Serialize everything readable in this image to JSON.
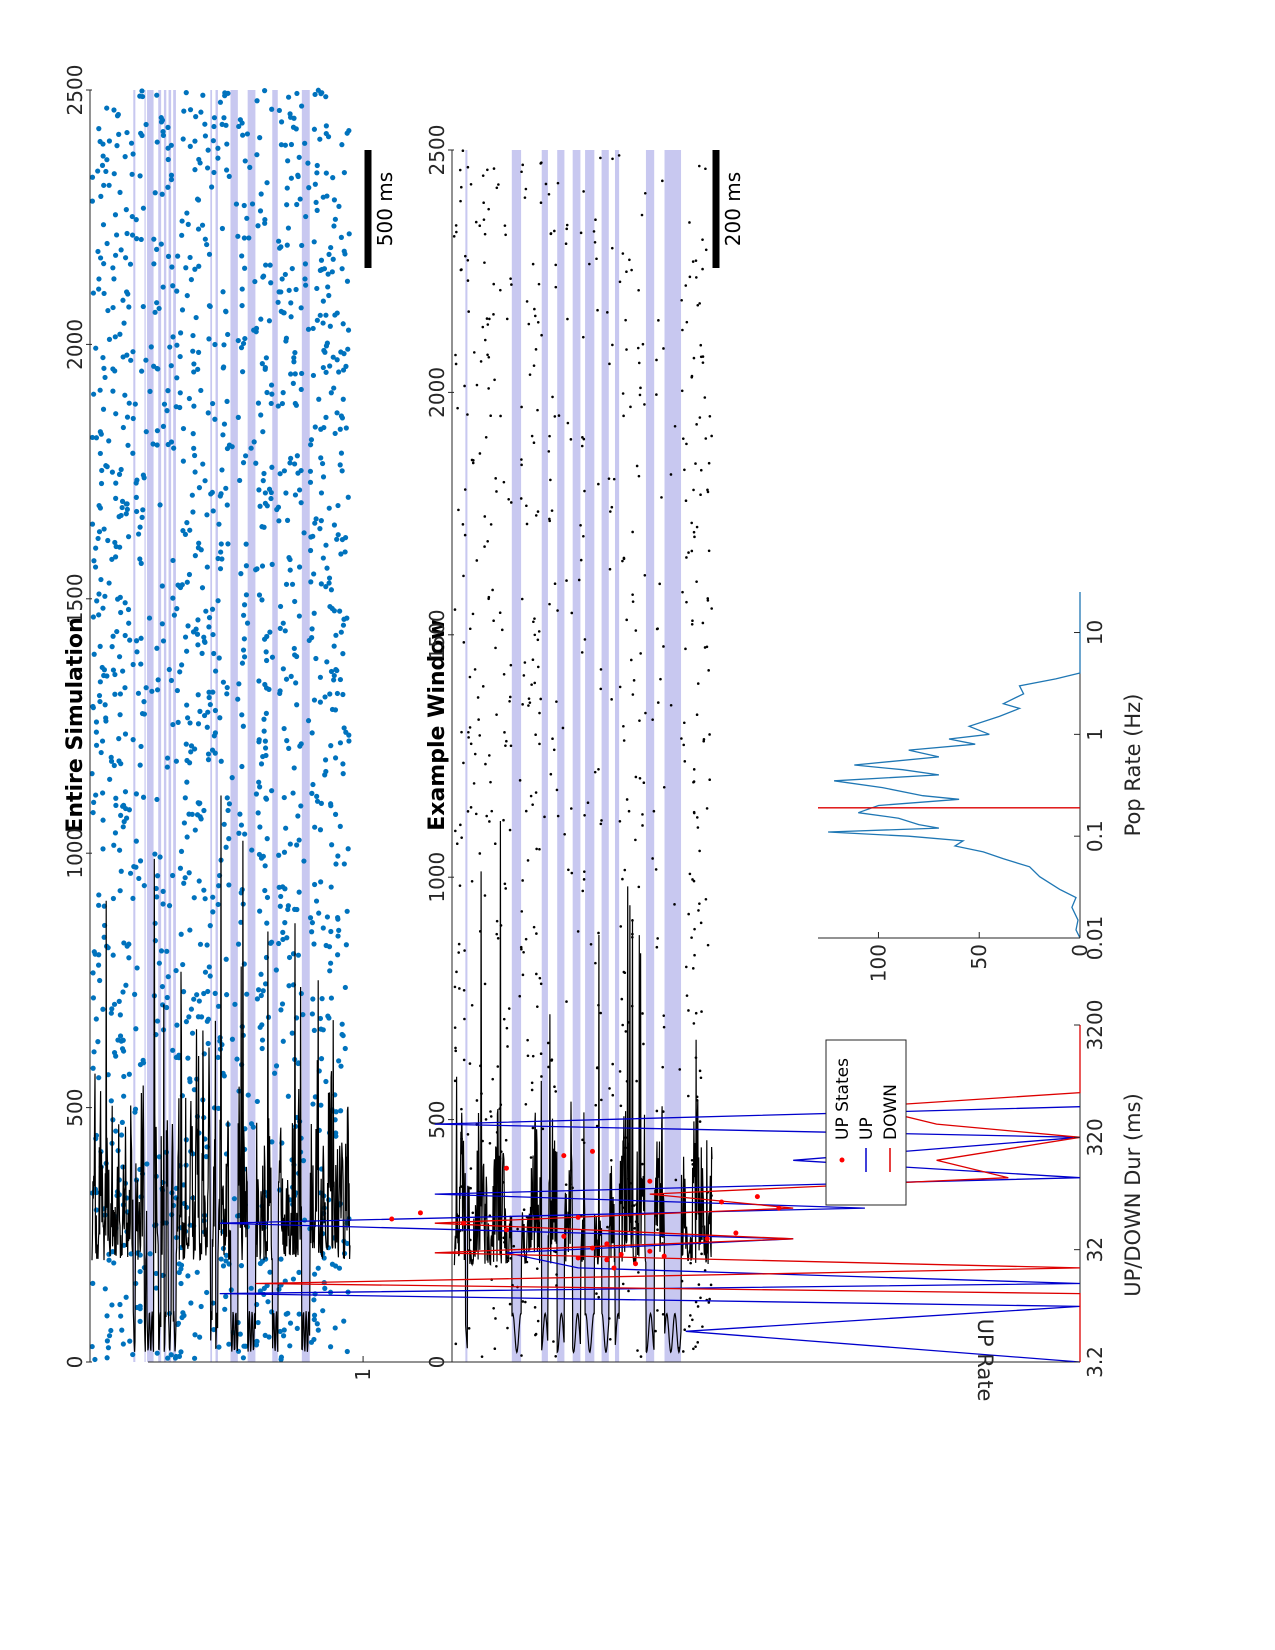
{
  "chart_data": [
    {
      "type": "scatter",
      "title": "Entire Simulation",
      "ylabel": "",
      "yticks": [
        "2500",
        "2000",
        "1500",
        "1000",
        "500",
        "0"
      ],
      "ylim": [
        0,
        2500
      ],
      "xlim": [
        0,
        15
      ],
      "scale_bar": "500 ms",
      "spike_color": "#0072bd",
      "down_shade_color": "#c8c8f0",
      "down_intervals": [
        [
          2.4,
          2.52
        ],
        [
          3.05,
          3.12
        ],
        [
          3.2,
          3.58
        ],
        [
          3.85,
          4.02
        ],
        [
          4.18,
          4.32
        ],
        [
          4.45,
          4.6
        ],
        [
          4.72,
          4.88
        ],
        [
          6.88,
          6.98
        ],
        [
          7.18,
          7.32
        ],
        [
          8.05,
          8.48
        ],
        [
          9.05,
          9.5
        ],
        [
          10.48,
          10.8
        ],
        [
          12.2,
          12.66
        ]
      ],
      "up_intervals_summary": "dense spiking between shaded DOWN epochs",
      "rate_trace": "population rate overlay (black line)"
    },
    {
      "type": "scatter",
      "title": "Example Window",
      "ylabel": "",
      "yticks": [
        "2500",
        "2000",
        "1500",
        "1000",
        "500",
        "0"
      ],
      "ylim": [
        0,
        2500
      ],
      "xlim": [
        0,
        5
      ],
      "scale_bar": "200 ms",
      "spike_color": "#000000",
      "down_shade_color": "#c8c8f0",
      "down_intervals": [
        [
          0.22,
          0.26
        ],
        [
          1.12,
          1.3
        ],
        [
          1.7,
          1.82
        ],
        [
          2.0,
          2.14
        ],
        [
          2.3,
          2.45
        ],
        [
          2.54,
          2.72
        ],
        [
          2.86,
          3.0
        ],
        [
          3.12,
          3.2
        ],
        [
          3.72,
          3.88
        ],
        [
          4.08,
          4.4
        ]
      ]
    },
    {
      "type": "line",
      "title": "",
      "xlabel": "UP/DOWN Dur (ms)",
      "ylabel": "UP Rate",
      "x_scale": "log",
      "xlim": [
        3.2,
        3200
      ],
      "xticks": [
        "3.2",
        "32",
        "320",
        "3200"
      ],
      "yticks": [
        "1"
      ],
      "legend": [
        "UP States",
        "UP",
        "DOWN"
      ],
      "legend_location": "top-right",
      "series": [
        {
          "name": "UP",
          "color": "#0000cc",
          "x": [
            3.2,
            6,
            10,
            13,
            16,
            22,
            30,
            40,
            55,
            75,
            100,
            140,
            200,
            320,
            420,
            600
          ],
          "y": [
            0,
            0.55,
            0,
            1.2,
            0,
            0.7,
            0.8,
            0.4,
            1.2,
            0.3,
            0.9,
            0,
            0.4,
            0,
            0.9,
            0
          ]
        },
        {
          "name": "DOWN",
          "color": "#dd0000",
          "x": [
            3.2,
            13,
            16,
            22,
            30,
            40,
            55,
            75,
            100,
            140,
            200,
            320,
            420,
            600,
            800,
            3200
          ],
          "y": [
            0,
            0,
            1.15,
            0,
            0.9,
            0.4,
            0.9,
            0.4,
            0.6,
            0.1,
            0.2,
            0,
            0.2,
            0.3,
            0,
            0
          ]
        },
        {
          "name": "UP States",
          "color": "#ff0000",
          "marker": "dot",
          "x": [
            22,
            24,
            26,
            27,
            28,
            29,
            31,
            33,
            36,
            40,
            42,
            45,
            48,
            55,
            60,
            62,
            68,
            75,
            85,
            95,
            110,
            130,
            170,
            220,
            240
          ],
          "y": [
            0.65,
            0.62,
            0.66,
            0.7,
            0.58,
            0.64,
            0.6,
            0.68,
            0.66,
            0.52,
            0.72,
            0.48,
            0.8,
            0.86,
            0.96,
            0.7,
            0.92,
            0.42,
            0.5,
            0.45,
            0.33,
            0.6,
            0.8,
            0.72,
            0.68
          ]
        }
      ]
    },
    {
      "type": "line",
      "title": "",
      "xlabel": "Pop Rate (Hz)",
      "ylabel": "",
      "x_scale": "log",
      "xlim": [
        0.01,
        25
      ],
      "xticks": [
        "0.01",
        "0.1",
        "1",
        "10"
      ],
      "yticks": [
        "0",
        "50",
        "100"
      ],
      "ylim": [
        0,
        130
      ],
      "series": [
        {
          "name": "",
          "color": "#1f77b4",
          "x": [
            0.01,
            0.012,
            0.015,
            0.02,
            0.025,
            0.03,
            0.04,
            0.05,
            0.06,
            0.07,
            0.08,
            0.09,
            0.1,
            0.11,
            0.12,
            0.13,
            0.15,
            0.17,
            0.2,
            0.23,
            0.25,
            0.3,
            0.35,
            0.4,
            0.45,
            0.5,
            0.6,
            0.7,
            0.8,
            0.9,
            1.0,
            1.2,
            1.5,
            1.8,
            2.0,
            2.5,
            3.0,
            3.5,
            4.0,
            5.0,
            25
          ],
          "y": [
            0,
            2,
            1,
            4,
            2,
            10,
            20,
            25,
            38,
            48,
            62,
            58,
            85,
            125,
            70,
            80,
            90,
            110,
            100,
            60,
            78,
            98,
            122,
            70,
            88,
            112,
            70,
            85,
            52,
            65,
            45,
            55,
            40,
            30,
            38,
            28,
            30,
            12,
            0,
            0,
            0
          ]
        },
        {
          "name": "",
          "color": "#dd0000",
          "x": [
            0.19,
            0.19
          ],
          "y": [
            0,
            130
          ]
        }
      ]
    }
  ]
}
